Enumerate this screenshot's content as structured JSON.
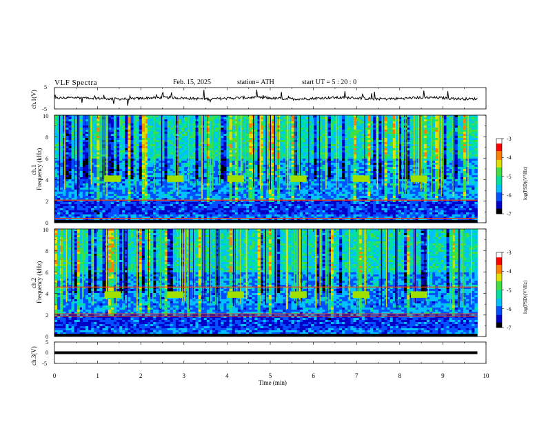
{
  "header": {
    "title": "VLF Spectra",
    "date": "Feb. 15, 2025",
    "station": "station= ATH",
    "start_ut": "start UT =  5 : 20 : 0"
  },
  "panels": {
    "ch1_voltage": {
      "ylabel": "ch.1(V)",
      "ticks": [
        "5",
        "-5"
      ]
    },
    "ch1_spectrogram": {
      "ylabel_ch": "ch.1",
      "ylabel": "Frequency (kHz)",
      "ticks": [
        "10",
        "8",
        "6",
        "4",
        "2",
        "0"
      ]
    },
    "ch2_spectrogram": {
      "ylabel_ch": "ch.2",
      "ylabel": "Frequency (kHz)",
      "ticks": [
        "10",
        "8",
        "6",
        "4",
        "2",
        "0"
      ]
    },
    "ch3_voltage": {
      "ylabel": "ch.3(V)",
      "ticks": [
        "5",
        "0",
        "-5"
      ]
    }
  },
  "colorbar": {
    "label": "log(PSD)(V²/Hz)",
    "ticks": [
      "-3",
      "-4",
      "-5",
      "-6",
      "-7"
    ],
    "colors": [
      "#000000",
      "#0000c8",
      "#0050ff",
      "#00c0ff",
      "#00e0a0",
      "#40e040",
      "#e0e000",
      "#ff8000",
      "#ff0000",
      "#ffffff"
    ]
  },
  "chart_data": {
    "type": "heatmap",
    "xlabel": "Time (min)",
    "x_ticks": [
      "0",
      "1",
      "2",
      "3",
      "4",
      "5",
      "6",
      "7",
      "8",
      "9",
      "10"
    ],
    "xlim": [
      0,
      10
    ],
    "data_end_min": 9.8,
    "freq_range_khz": [
      0,
      10
    ],
    "zlim": [
      -7,
      -3
    ],
    "ch1_voltage_range": [
      -5,
      5
    ],
    "ch3_voltage_range": [
      -5,
      5
    ],
    "ch3_level": 0,
    "transmitter_bursts_min": [
      1.35,
      2.8,
      4.2,
      5.65,
      7.1,
      8.45
    ],
    "ch1_burst_freq_khz": 4.1,
    "ch2_burst_freq_khz": 3.9,
    "ch1_strong_lines_khz": [
      0.4,
      2.1
    ],
    "ch2_strong_lines_khz": [
      1.9,
      2.1,
      4.6
    ]
  }
}
